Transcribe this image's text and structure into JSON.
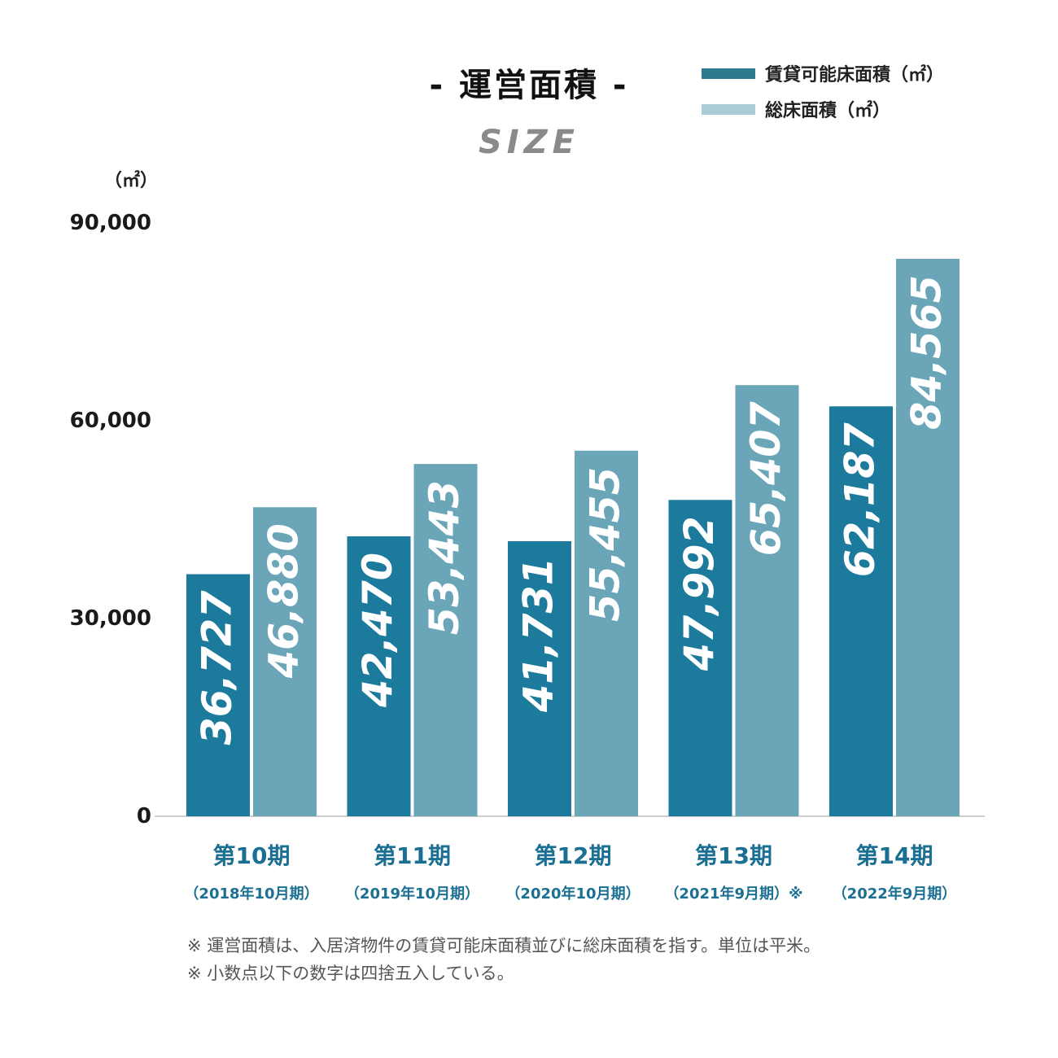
{
  "chart_data": {
    "type": "bar",
    "title": "- 運営面積 -",
    "subtitle": "SIZE",
    "unit_label": "（㎡）",
    "categories": [
      "第10期",
      "第11期",
      "第12期",
      "第13期",
      "第14期"
    ],
    "category_sublabels": [
      "（2018年10月期）",
      "（2019年10月期）",
      "（2020年10月期）",
      "（2021年9月期）※",
      "（2022年9月期）"
    ],
    "series": [
      {
        "name": "賃貸可能床面積（㎡）",
        "color": "#1c7a9c",
        "values": [
          36727,
          42470,
          41731,
          47992,
          62187
        ]
      },
      {
        "name": "総床面積（㎡）",
        "color": "#6aa5b8",
        "values": [
          46880,
          53443,
          55455,
          65407,
          84565
        ]
      }
    ],
    "value_labels": [
      [
        "36,727",
        "42,470",
        "41,731",
        "47,992",
        "62,187"
      ],
      [
        "46,880",
        "53,443",
        "55,455",
        "65,407",
        "84,565"
      ]
    ],
    "legend_swatch_colors": [
      "#2b7b8c",
      "#a9cdd6"
    ],
    "yticks": [
      "0",
      "30,000",
      "60,000",
      "90,000"
    ],
    "ytick_values": [
      0,
      30000,
      60000,
      90000
    ],
    "ylim": [
      0,
      90000
    ],
    "grid": false,
    "legend_position": "top-right"
  },
  "notes": [
    "※ 運営面積は、入居済物件の賃貸可能床面積並びに総床面積を指す。単位は平米。",
    "※ 小数点以下の数字は四捨五入している。"
  ]
}
